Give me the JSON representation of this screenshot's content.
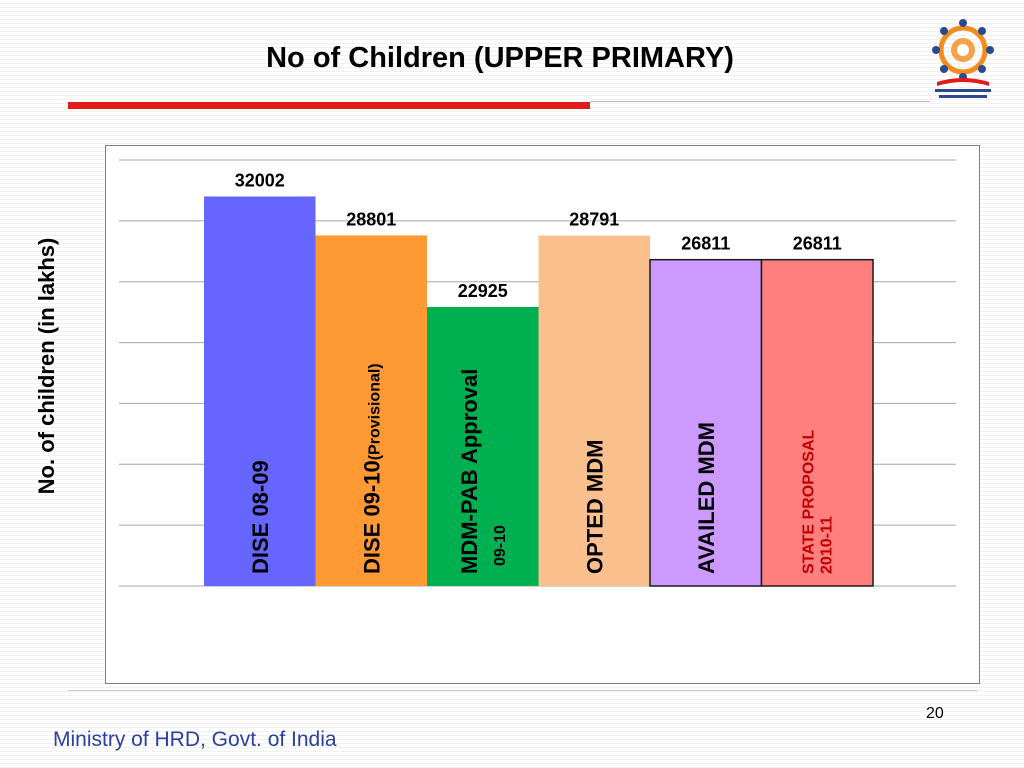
{
  "slide": {
    "title": "No of Children (UPPER PRIMARY)",
    "page_number": "20",
    "footer": "Ministry of HRD, Govt. of India"
  },
  "logo": {
    "icon": "mid-day-meal-scheme-logo"
  },
  "chart_data": {
    "type": "bar",
    "ylabel": "No. of children (in lakhs)",
    "xlabel": "",
    "grid": true,
    "ylim": [
      0,
      35000
    ],
    "bars": [
      {
        "label": "DISE 08-09",
        "label_sub": "",
        "value": 32002,
        "color": "#6666ff",
        "text_color": "#000000"
      },
      {
        "label": "DISE 09-10",
        "label_sub": "(Provisional)",
        "value": 28801,
        "color": "#ff9933",
        "text_color": "#000000"
      },
      {
        "label": "MDM-PAB Approval",
        "label_sub": "09-10",
        "value": 22925,
        "color": "#00b050",
        "text_color": "#000000"
      },
      {
        "label": "OPTED MDM",
        "label_sub": "",
        "value": 28791,
        "color": "#f9c08e",
        "text_color": "#000000"
      },
      {
        "label": "AVAILED MDM",
        "label_sub": "",
        "value": 26811,
        "color": "#cc99ff",
        "text_color": "#000000"
      },
      {
        "label": "STATE PROPOSAL",
        "label_sub": "2010-11",
        "value": 26811,
        "color": "#ff7f7f",
        "text_color": "#c00000"
      }
    ]
  }
}
